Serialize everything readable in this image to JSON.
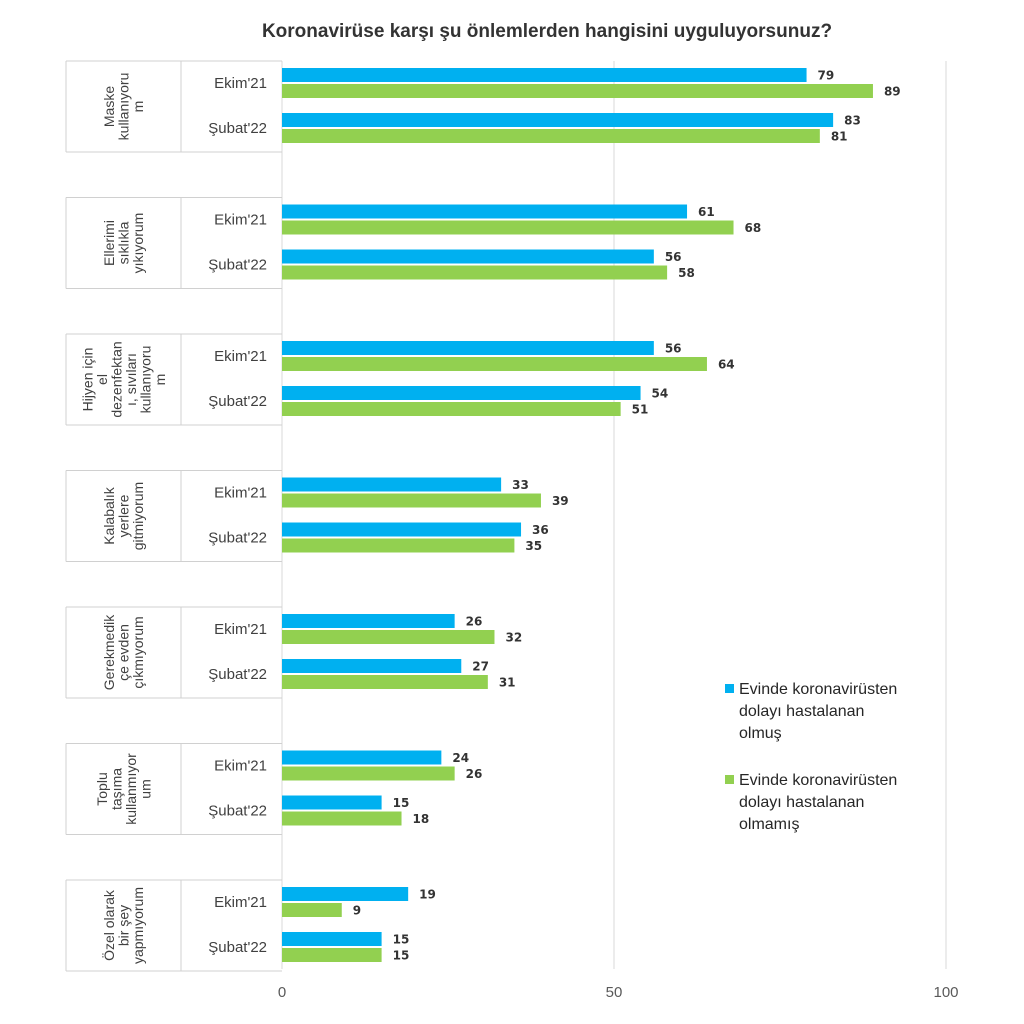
{
  "chart_data": {
    "type": "bar",
    "orientation": "horizontal",
    "title": "Koronavirüse karşı şu önlemlerden hangisini uyguluyorsunuz?",
    "xlim": [
      0,
      100
    ],
    "xticks": [
      0,
      50,
      100
    ],
    "grid": true,
    "legend_position": "right",
    "series": [
      {
        "name": "Evinde koronavirüsten dolayı hastalanan olmuş",
        "color": "#00B0F0"
      },
      {
        "name": "Evinde koronavirüsten dolayı hastalanan olmamış",
        "color": "#92D050"
      }
    ],
    "groups": [
      {
        "label": [
          "Maske",
          "kullanıyoru",
          "m"
        ],
        "rows": [
          {
            "period": "Ekim'21",
            "values": [
              79,
              89
            ]
          },
          {
            "period": "Şubat'22",
            "values": [
              83,
              81
            ]
          }
        ]
      },
      {
        "label": [
          "Ellerimi",
          "sıklıkla",
          "yıkıyorum"
        ],
        "rows": [
          {
            "period": "Ekim'21",
            "values": [
              61,
              68
            ]
          },
          {
            "period": "Şubat'22",
            "values": [
              56,
              58
            ]
          }
        ]
      },
      {
        "label": [
          "Hijyen için",
          "el",
          "dezenfektan",
          "ı, sıvıları",
          "kullanıyoru",
          "m"
        ],
        "rows": [
          {
            "period": "Ekim'21",
            "values": [
              56,
              64
            ]
          },
          {
            "period": "Şubat'22",
            "values": [
              54,
              51
            ]
          }
        ]
      },
      {
        "label": [
          "Kalabalık",
          "yerlere",
          "gitmiyorum"
        ],
        "rows": [
          {
            "period": "Ekim'21",
            "values": [
              33,
              39
            ]
          },
          {
            "period": "Şubat'22",
            "values": [
              36,
              35
            ]
          }
        ]
      },
      {
        "label": [
          "Gerekmedik",
          "çe evden",
          "çıkmıyorum"
        ],
        "rows": [
          {
            "period": "Ekim'21",
            "values": [
              26,
              32
            ]
          },
          {
            "period": "Şubat'22",
            "values": [
              27,
              31
            ]
          }
        ]
      },
      {
        "label": [
          "Toplu",
          "taşıma",
          "kullanmıyor",
          "um"
        ],
        "rows": [
          {
            "period": "Ekim'21",
            "values": [
              24,
              26
            ]
          },
          {
            "period": "Şubat'22",
            "values": [
              15,
              18
            ]
          }
        ]
      },
      {
        "label": [
          "Özel olarak",
          "bir şey",
          "yapmıyorum"
        ],
        "rows": [
          {
            "period": "Ekim'21",
            "values": [
              19,
              9
            ]
          },
          {
            "period": "Şubat'22",
            "values": [
              15,
              15
            ]
          }
        ]
      }
    ]
  }
}
